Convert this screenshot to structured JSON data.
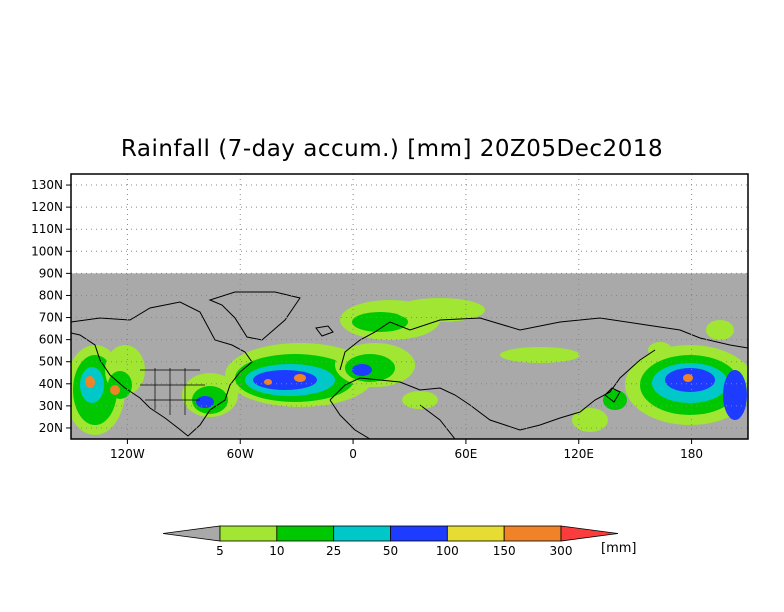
{
  "title": "Rainfall (7-day accum.) [mm] 20Z05Dec2018",
  "map": {
    "y_axis_labels": [
      "130N",
      "120N",
      "110N",
      "100N",
      "90N",
      "80N",
      "70N",
      "60N",
      "50N",
      "40N",
      "30N",
      "20N"
    ],
    "x_axis_labels": [
      "120W",
      "60W",
      "0",
      "60E",
      "120E",
      "180"
    ],
    "lat_range": [
      15,
      135
    ],
    "lon_range": [
      -150,
      210
    ],
    "data_lat_range": [
      15,
      90
    ],
    "no_data_color": "#a9a9a9",
    "grid": "dotted"
  },
  "legend": {
    "thresholds": [
      "5",
      "10",
      "25",
      "50",
      "100",
      "150",
      "300"
    ],
    "colors": [
      "#a9a9a9",
      "#a0e632",
      "#00c800",
      "#00c8c8",
      "#1e3cff",
      "#e6dc32",
      "#f08228",
      "#fa3c3c"
    ],
    "units": "[mm]"
  }
}
